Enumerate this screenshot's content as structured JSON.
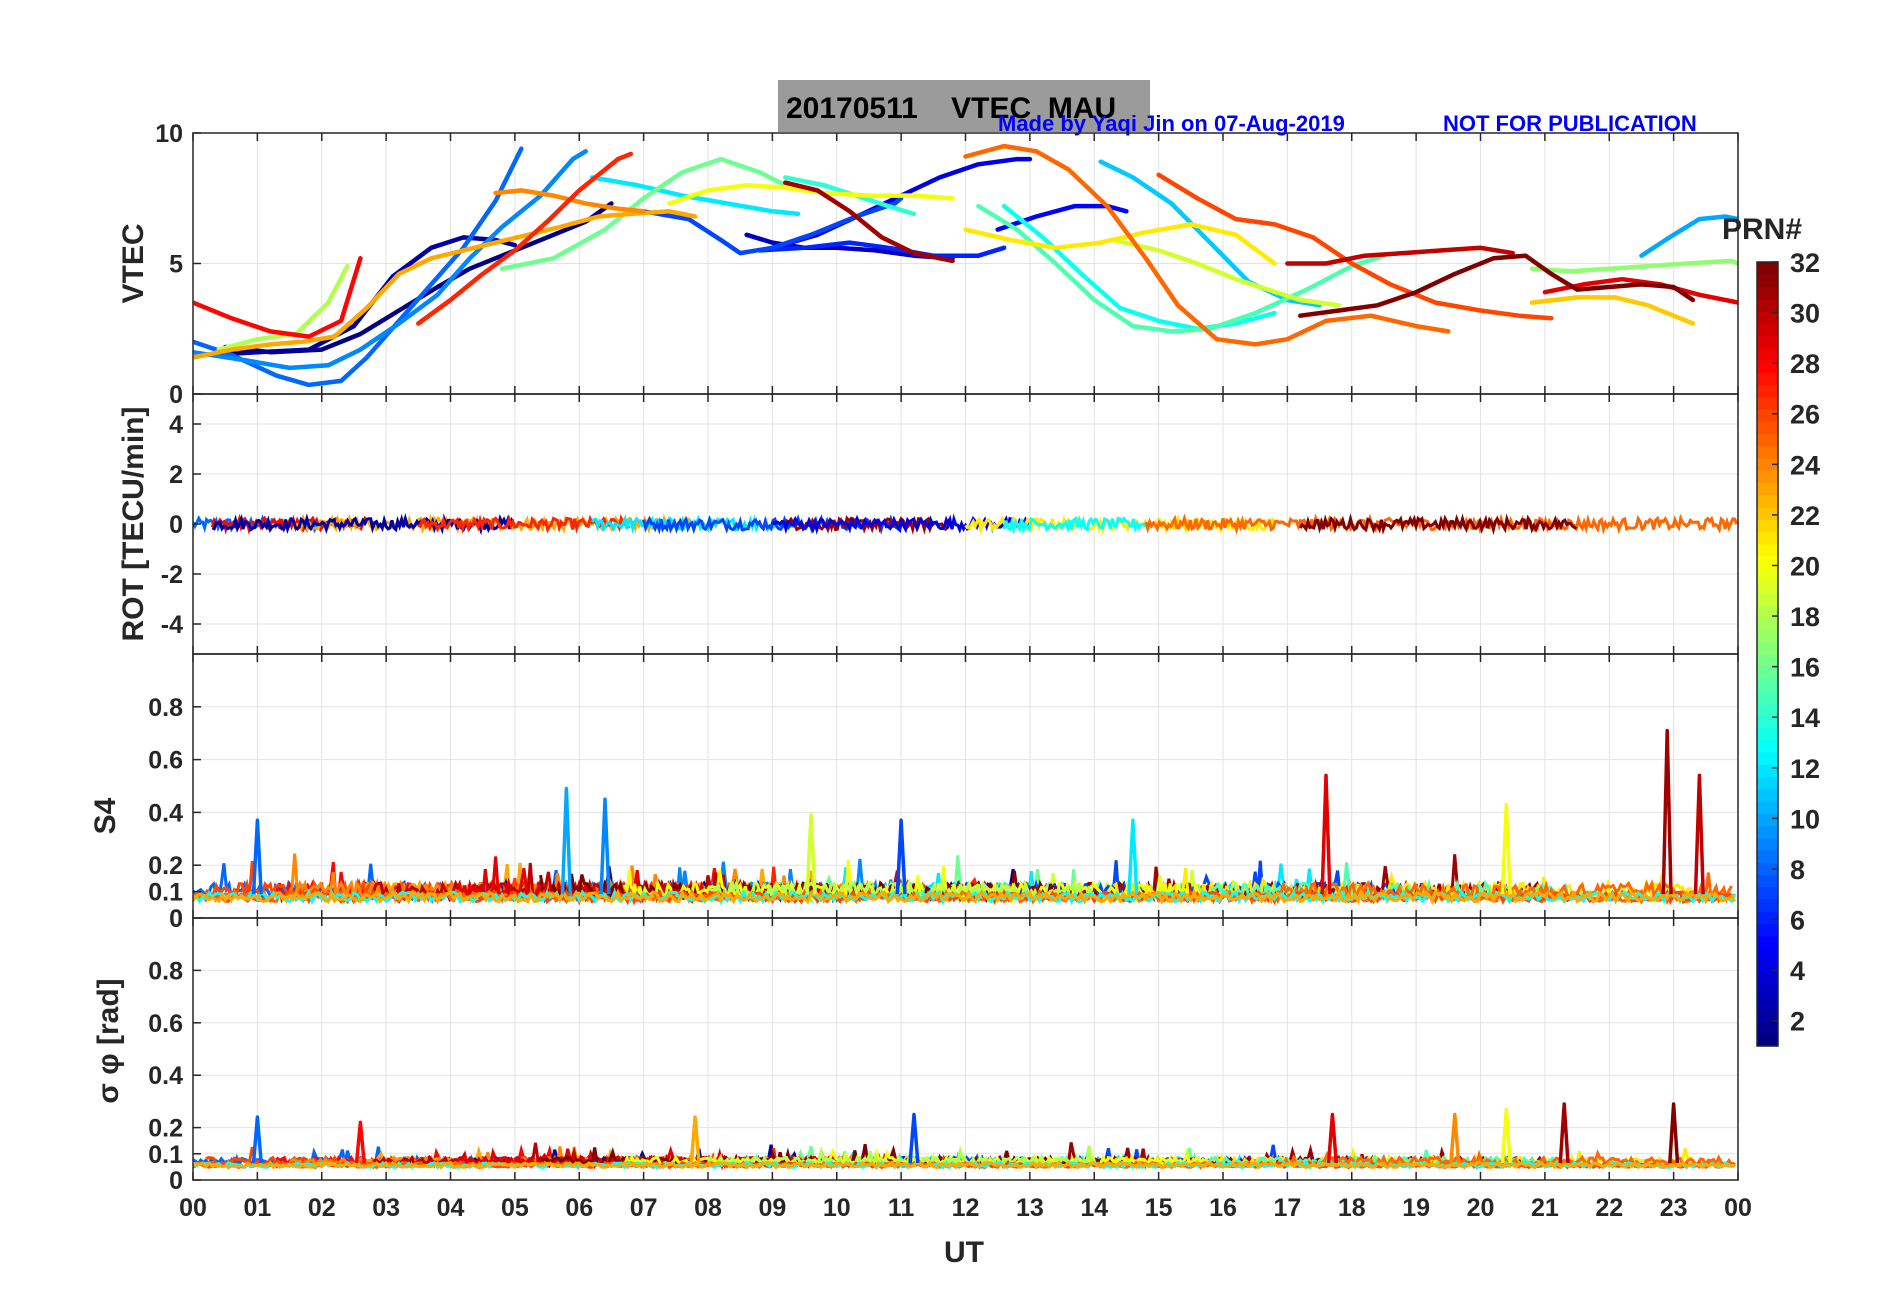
{
  "title": "20170511    VTEC  MAU",
  "credit": "Made by Yaqi Jin on 07-Aug-2019",
  "notice": "NOT FOR PUBLICATION",
  "colors": {
    "credit": "#0000ff",
    "title_box": "#9b9b9b",
    "axis": "#262626",
    "grid": "#e3e3e3"
  },
  "chart_data": [
    {
      "type": "line",
      "panel": "vtec",
      "ylabel": "VTEC",
      "ylim": [
        0,
        10
      ],
      "yticks": [
        "0",
        "5",
        "10"
      ],
      "series": [
        {
          "name": "PRN 1",
          "prn": 1,
          "x": [
            0.5,
            1.2,
            2.0,
            2.6,
            3.2,
            3.8,
            4.3,
            4.9,
            5.5,
            6.1,
            6.5
          ],
          "y": [
            1.8,
            1.6,
            1.7,
            2.3,
            3.2,
            4.1,
            4.8,
            5.4,
            6.0,
            6.6,
            7.3
          ]
        },
        {
          "name": "PRN 2",
          "prn": 2,
          "x": [
            0.3,
            1.0,
            1.8,
            2.5,
            3.1,
            3.7,
            4.2,
            4.7,
            5.0
          ],
          "y": [
            1.5,
            1.6,
            1.7,
            2.6,
            4.5,
            5.6,
            6.0,
            5.9,
            5.7
          ]
        },
        {
          "name": "PRN 3",
          "prn": 3,
          "x": [
            8.6,
            9.0,
            9.5,
            10.0,
            10.6,
            11.2,
            11.8
          ],
          "y": [
            6.1,
            5.8,
            5.6,
            5.6,
            5.5,
            5.3,
            5.2
          ]
        },
        {
          "name": "PRN 4",
          "prn": 4,
          "x": [
            9.0,
            9.7,
            10.4,
            11.0,
            11.6,
            12.2,
            12.8,
            13.0
          ],
          "y": [
            5.6,
            6.1,
            6.9,
            7.6,
            8.3,
            8.8,
            9.0,
            9.0
          ]
        },
        {
          "name": "PRN 5",
          "prn": 5,
          "x": [
            12.5,
            13.1,
            13.7,
            14.2,
            14.5
          ],
          "y": [
            6.3,
            6.8,
            7.2,
            7.2,
            7.0
          ]
        },
        {
          "name": "PRN 6",
          "prn": 6,
          "x": [
            8.8,
            9.5,
            10.2,
            10.8,
            11.5,
            12.2,
            12.6
          ],
          "y": [
            5.5,
            5.6,
            5.8,
            5.6,
            5.3,
            5.3,
            5.6
          ]
        },
        {
          "name": "PRN 7",
          "prn": 7,
          "x": [
            7.0,
            7.7,
            8.2,
            8.5,
            9.0,
            9.6,
            10.3,
            10.9,
            11.0
          ],
          "y": [
            7.0,
            6.7,
            5.9,
            5.4,
            5.6,
            6.1,
            6.8,
            7.3,
            7.5
          ]
        },
        {
          "name": "PRN 8",
          "prn": 8,
          "x": [
            0.0,
            0.6,
            1.3,
            1.8,
            2.3,
            2.7,
            3.2,
            3.7,
            4.2,
            4.7,
            5.1
          ],
          "y": [
            2.0,
            1.5,
            0.7,
            0.35,
            0.5,
            1.4,
            2.8,
            4.2,
            5.6,
            7.4,
            9.4
          ]
        },
        {
          "name": "PRN 9",
          "prn": 9,
          "x": [
            0.0,
            0.8,
            1.5,
            2.1,
            2.6,
            3.2,
            3.8,
            4.3,
            4.8,
            5.4,
            5.9,
            6.1
          ],
          "y": [
            1.6,
            1.3,
            1.0,
            1.1,
            1.7,
            2.7,
            3.8,
            5.2,
            6.4,
            7.6,
            9.0,
            9.3
          ]
        },
        {
          "name": "PRN 10",
          "prn": 10,
          "x": [
            22.5,
            23.0,
            23.4,
            23.8,
            24.0
          ],
          "y": [
            5.3,
            6.1,
            6.7,
            6.8,
            6.7
          ]
        },
        {
          "name": "PRN 11",
          "prn": 11,
          "x": [
            14.1,
            14.6,
            15.2,
            15.8,
            16.4,
            17.0,
            17.5
          ],
          "y": [
            8.9,
            8.3,
            7.3,
            5.8,
            4.3,
            3.6,
            3.4
          ]
        },
        {
          "name": "PRN 12",
          "prn": 12,
          "x": [
            6.2,
            6.9,
            7.6,
            8.3,
            9.0,
            9.4
          ],
          "y": [
            8.3,
            8.0,
            7.6,
            7.3,
            7.0,
            6.9
          ]
        },
        {
          "name": "PRN 13",
          "prn": 13,
          "x": [
            12.6,
            13.2,
            13.8,
            14.4,
            15.0,
            15.6,
            16.2,
            16.8
          ],
          "y": [
            7.2,
            6.0,
            4.6,
            3.3,
            2.8,
            2.5,
            2.7,
            3.1
          ]
        },
        {
          "name": "PRN 14",
          "prn": 14,
          "x": [
            9.2,
            9.8,
            10.3,
            10.8,
            11.2
          ],
          "y": [
            8.3,
            8.0,
            7.6,
            7.2,
            6.9
          ]
        },
        {
          "name": "PRN 15",
          "prn": 15,
          "x": [
            12.2,
            12.8,
            13.4,
            14.0,
            14.6,
            15.2,
            15.8,
            16.5,
            17.3,
            18.0,
            18.5
          ],
          "y": [
            7.2,
            6.3,
            5.0,
            3.6,
            2.6,
            2.4,
            2.5,
            3.1,
            4.0,
            4.9,
            5.3
          ]
        },
        {
          "name": "PRN 16",
          "prn": 16,
          "x": [
            4.8,
            5.6,
            6.4,
            7.0,
            7.6,
            8.2,
            8.8,
            9.2
          ],
          "y": [
            4.8,
            5.2,
            6.3,
            7.5,
            8.5,
            9.0,
            8.5,
            8.0
          ]
        },
        {
          "name": "PRN 17",
          "prn": 17,
          "x": [
            20.8,
            21.4,
            22.0,
            22.6,
            23.2,
            23.9,
            24.0
          ],
          "y": [
            4.8,
            4.7,
            4.8,
            4.9,
            5.0,
            5.1,
            5.0
          ]
        },
        {
          "name": "PRN 18",
          "prn": 18,
          "x": [
            0.4,
            1.0,
            1.6,
            2.1,
            2.4
          ],
          "y": [
            1.7,
            2.1,
            2.3,
            3.5,
            4.9
          ]
        },
        {
          "name": "PRN 19",
          "prn": 19,
          "x": [
            14.3,
            15.0,
            15.6,
            16.2,
            16.7,
            17.2,
            17.8
          ],
          "y": [
            5.9,
            5.5,
            5.0,
            4.4,
            4.0,
            3.6,
            3.4
          ]
        },
        {
          "name": "PRN 20",
          "prn": 20,
          "x": [
            7.4,
            8.0,
            8.6,
            9.2,
            9.8,
            10.5,
            11.2,
            11.8
          ],
          "y": [
            7.3,
            7.8,
            8.0,
            7.9,
            7.7,
            7.6,
            7.6,
            7.5
          ]
        },
        {
          "name": "PRN 21",
          "prn": 21,
          "x": [
            12.0,
            12.7,
            13.4,
            14.1,
            14.8,
            15.5,
            16.2,
            16.8
          ],
          "y": [
            6.3,
            5.9,
            5.6,
            5.8,
            6.2,
            6.5,
            6.1,
            5.0
          ]
        },
        {
          "name": "PRN 22",
          "prn": 22,
          "x": [
            20.8,
            21.5,
            22.1,
            22.6,
            23.1,
            23.3
          ],
          "y": [
            3.5,
            3.7,
            3.7,
            3.4,
            2.9,
            2.7
          ]
        },
        {
          "name": "PRN 23",
          "prn": 23,
          "x": [
            0.0,
            0.6,
            1.2,
            1.7,
            2.2,
            2.7,
            3.2,
            3.7,
            4.2,
            4.7,
            5.2,
            5.7,
            6.3,
            6.8,
            7.4,
            7.8
          ],
          "y": [
            1.4,
            1.7,
            1.9,
            2.0,
            2.2,
            3.3,
            4.6,
            5.2,
            5.5,
            5.8,
            6.1,
            6.4,
            6.8,
            6.9,
            7.0,
            6.8
          ]
        },
        {
          "name": "PRN 24",
          "prn": 24,
          "x": [
            4.7,
            5.1,
            5.6,
            6.1,
            6.6,
            7.0
          ],
          "y": [
            7.7,
            7.8,
            7.6,
            7.3,
            7.1,
            7.0
          ]
        },
        {
          "name": "PRN 25",
          "prn": 25,
          "x": [
            12.0,
            12.6,
            13.1,
            13.6,
            14.2,
            14.8,
            15.3,
            15.9,
            16.5,
            17.0,
            17.6,
            18.3,
            19.0,
            19.5
          ],
          "y": [
            9.1,
            9.5,
            9.3,
            8.6,
            7.2,
            5.2,
            3.4,
            2.1,
            1.9,
            2.1,
            2.8,
            3.0,
            2.6,
            2.4
          ]
        },
        {
          "name": "PRN 26",
          "prn": 26,
          "x": [
            15.0,
            15.6,
            16.2,
            16.8,
            17.4,
            18.0,
            18.6,
            19.3,
            20.0,
            20.6,
            21.1
          ],
          "y": [
            8.4,
            7.5,
            6.7,
            6.5,
            6.0,
            5.0,
            4.2,
            3.5,
            3.2,
            3.0,
            2.9
          ]
        },
        {
          "name": "PRN 27",
          "prn": 27,
          "x": [
            3.5,
            4.0,
            4.5,
            5.0,
            5.5,
            6.0,
            6.6,
            6.8
          ],
          "y": [
            2.7,
            3.6,
            4.6,
            5.5,
            6.6,
            7.8,
            9.0,
            9.2
          ]
        },
        {
          "name": "PRN 28",
          "prn": 28,
          "x": [
            0.0,
            0.6,
            1.2,
            1.8,
            2.3,
            2.6
          ],
          "y": [
            3.5,
            2.9,
            2.4,
            2.2,
            2.8,
            5.2
          ]
        },
        {
          "name": "PRN 29",
          "prn": 29,
          "x": [
            21.0,
            21.6,
            22.2,
            22.8,
            23.4,
            24.0
          ],
          "y": [
            3.9,
            4.2,
            4.4,
            4.2,
            3.8,
            3.5
          ]
        },
        {
          "name": "PRN 30",
          "prn": 30,
          "x": [
            17.0,
            17.6,
            18.2,
            18.8,
            19.4,
            20.0,
            20.5
          ],
          "y": [
            5.0,
            5.0,
            5.3,
            5.4,
            5.5,
            5.6,
            5.4
          ]
        },
        {
          "name": "PRN 31",
          "prn": 31,
          "x": [
            9.2,
            9.7,
            10.2,
            10.7,
            11.2,
            11.8
          ],
          "y": [
            8.1,
            7.8,
            7.0,
            6.0,
            5.4,
            5.1
          ]
        },
        {
          "name": "PRN 32",
          "prn": 32,
          "x": [
            17.2,
            17.8,
            18.4,
            19.0,
            19.6,
            20.2,
            20.7,
            21.1,
            21.5,
            22.0,
            22.5,
            23.0,
            23.3
          ],
          "y": [
            3.0,
            3.2,
            3.4,
            3.9,
            4.6,
            5.2,
            5.3,
            4.6,
            4.0,
            4.1,
            4.2,
            4.1,
            3.6
          ]
        }
      ]
    },
    {
      "type": "line",
      "panel": "rot",
      "ylabel": "ROT [TECU/min]",
      "ylim": [
        -5.2,
        5.2
      ],
      "yticks": [
        "-4",
        "-2",
        "0",
        "2",
        "4"
      ],
      "series_note": "noisy traces near 0 TECU/min for all PRNs, amplitude about ±0.3",
      "series": [
        {
          "name": "PRN 8",
          "prn": 8,
          "x": [
            0.0,
            2.0
          ],
          "y": [
            0,
            0
          ]
        },
        {
          "name": "PRN 28",
          "prn": 28,
          "x": [
            0.3,
            2.7
          ],
          "y": [
            0,
            0
          ]
        },
        {
          "name": "PRN 23",
          "prn": 23,
          "x": [
            1.5,
            7.8
          ],
          "y": [
            0,
            0
          ]
        },
        {
          "name": "PRN 2",
          "prn": 2,
          "x": [
            0.3,
            5.0
          ],
          "y": [
            0,
            0
          ]
        },
        {
          "name": "PRN 27",
          "prn": 27,
          "x": [
            3.5,
            6.8
          ],
          "y": [
            0,
            0
          ]
        },
        {
          "name": "PRN 12",
          "prn": 12,
          "x": [
            6.2,
            9.4
          ],
          "y": [
            0,
            0
          ]
        },
        {
          "name": "PRN 7",
          "prn": 7,
          "x": [
            7.0,
            11.0
          ],
          "y": [
            0,
            0
          ]
        },
        {
          "name": "PRN 31",
          "prn": 31,
          "x": [
            9.2,
            11.8
          ],
          "y": [
            0,
            0
          ]
        },
        {
          "name": "PRN 4",
          "prn": 4,
          "x": [
            9.0,
            13.0
          ],
          "y": [
            0,
            0
          ]
        },
        {
          "name": "PRN 21",
          "prn": 21,
          "x": [
            12.0,
            16.8
          ],
          "y": [
            0,
            0
          ]
        },
        {
          "name": "PRN 13",
          "prn": 13,
          "x": [
            12.6,
            14.8
          ],
          "y": [
            0,
            0
          ]
        },
        {
          "name": "PRN 25",
          "prn": 25,
          "x": [
            14.8,
            24.0
          ],
          "y": [
            0,
            0
          ]
        },
        {
          "name": "PRN 32",
          "prn": 32,
          "x": [
            17.2,
            21.5
          ],
          "y": [
            0,
            0
          ]
        }
      ]
    },
    {
      "type": "line",
      "panel": "s4",
      "ylabel": "S4",
      "ylim": [
        0,
        1.0
      ],
      "yticks": [
        "0",
        "0.1",
        "0.2",
        "0.4",
        "0.6",
        "0.8"
      ],
      "series_note": "noisy S4 indices mostly 0.05–0.15 with spikes",
      "spikes": [
        {
          "prn": 8,
          "x": 1.0,
          "y": 0.37
        },
        {
          "prn": 10,
          "x": 5.8,
          "y": 0.49
        },
        {
          "prn": 9,
          "x": 6.4,
          "y": 0.45
        },
        {
          "prn": 19,
          "x": 9.6,
          "y": 0.39
        },
        {
          "prn": 7,
          "x": 11.0,
          "y": 0.37
        },
        {
          "prn": 12,
          "x": 14.6,
          "y": 0.37
        },
        {
          "prn": 29,
          "x": 17.6,
          "y": 0.54
        },
        {
          "prn": 20,
          "x": 20.4,
          "y": 0.43
        },
        {
          "prn": 31,
          "x": 22.9,
          "y": 0.71
        },
        {
          "prn": 30,
          "x": 23.4,
          "y": 0.54
        }
      ]
    },
    {
      "type": "line",
      "panel": "sigma_phi",
      "ylabel": "σ φ [rad]",
      "xlabel": "UT",
      "ylim": [
        0,
        1.0
      ],
      "yticks": [
        "0",
        "0.1",
        "0.2",
        "0.4",
        "0.6",
        "0.8"
      ],
      "xticks": [
        "00",
        "01",
        "02",
        "03",
        "04",
        "05",
        "06",
        "07",
        "08",
        "09",
        "10",
        "11",
        "12",
        "13",
        "14",
        "15",
        "16",
        "17",
        "18",
        "19",
        "20",
        "21",
        "22",
        "23",
        "00"
      ],
      "series_note": "noisy phase scintillation index mostly 0.05–0.10 with spikes",
      "spikes": [
        {
          "prn": 8,
          "x": 1.0,
          "y": 0.24
        },
        {
          "prn": 28,
          "x": 2.6,
          "y": 0.22
        },
        {
          "prn": 23,
          "x": 7.8,
          "y": 0.24
        },
        {
          "prn": 7,
          "x": 11.2,
          "y": 0.25
        },
        {
          "prn": 29,
          "x": 17.7,
          "y": 0.25
        },
        {
          "prn": 24,
          "x": 19.6,
          "y": 0.25
        },
        {
          "prn": 20,
          "x": 20.4,
          "y": 0.27
        },
        {
          "prn": 31,
          "x": 21.3,
          "y": 0.29
        },
        {
          "prn": 32,
          "x": 23.0,
          "y": 0.29
        }
      ]
    }
  ],
  "colorbar": {
    "label": "PRN#",
    "range": [
      1,
      32
    ],
    "ticks": [
      "2",
      "4",
      "6",
      "8",
      "10",
      "12",
      "14",
      "16",
      "18",
      "20",
      "22",
      "24",
      "26",
      "28",
      "30",
      "32"
    ]
  }
}
